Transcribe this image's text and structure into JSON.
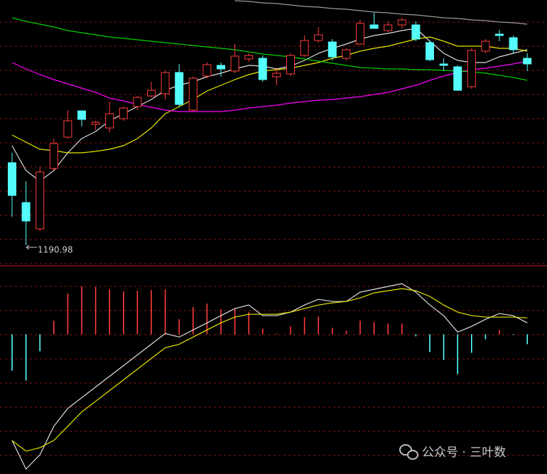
{
  "chart_data": [
    {
      "type": "candlestick",
      "up_color": "#ff3c3c",
      "down_color": "#54fcfc",
      "ylim": [
        1164,
        1536
      ],
      "open": [
        1307,
        1251,
        1214,
        1299,
        1343,
        1380,
        1361,
        1356,
        1369,
        1386,
        1401,
        1404,
        1434,
        1381,
        1429,
        1444,
        1436,
        1453,
        1454,
        1428,
        1432,
        1458,
        1479,
        1477,
        1454,
        1474,
        1501,
        1493,
        1501,
        1501,
        1476,
        1446,
        1442,
        1414,
        1464,
        1488,
        1483,
        1454
      ],
      "high": [
        1321,
        1281,
        1301,
        1341,
        1381,
        1380,
        1366,
        1393,
        1386,
        1401,
        1421,
        1436,
        1446,
        1428,
        1448,
        1448,
        1474,
        1461,
        1458,
        1441,
        1461,
        1486,
        1498,
        1481,
        1468,
        1508,
        1518,
        1506,
        1511,
        1506,
        1479,
        1454,
        1444,
        1468,
        1481,
        1494,
        1486,
        1461
      ],
      "low": [
        1231,
        1190.98,
        1211,
        1296,
        1341,
        1358,
        1353,
        1350,
        1366,
        1381,
        1399,
        1396,
        1386,
        1379,
        1426,
        1428,
        1433,
        1449,
        1421,
        1416,
        1429,
        1456,
        1476,
        1451,
        1451,
        1473,
        1496,
        1491,
        1496,
        1478,
        1450,
        1436,
        1408,
        1411,
        1461,
        1478,
        1461,
        1436
      ],
      "close": [
        1261,
        1225,
        1294,
        1334,
        1366,
        1368,
        1364,
        1376,
        1384,
        1399,
        1409,
        1434,
        1389,
        1426,
        1445,
        1439,
        1457,
        1458,
        1424,
        1433,
        1458,
        1479,
        1487,
        1456,
        1466,
        1503,
        1496,
        1501,
        1508,
        1481,
        1452,
        1444,
        1409,
        1465,
        1478,
        1486,
        1466,
        1446
      ],
      "series": [
        {
          "color": "#dddddd",
          "values": [
            1331,
            1296,
            1281,
            1296,
            1321,
            1341,
            1351,
            1366,
            1376,
            1386,
            1396,
            1409,
            1416,
            1421,
            1428,
            1433,
            1439,
            1444,
            1443,
            1439,
            1443,
            1451,
            1461,
            1468,
            1474,
            1481,
            1486,
            1489,
            1493,
            1496,
            1478,
            1461,
            1451,
            1448,
            1448,
            1456,
            1461,
            1466
          ]
        },
        {
          "color": "#e6e600",
          "values": [
            1346,
            1336,
            1326,
            1324,
            1321,
            1321,
            1323,
            1326,
            1331,
            1341,
            1356,
            1376,
            1386,
            1396,
            1408,
            1416,
            1424,
            1431,
            1436,
            1438,
            1440,
            1444,
            1448,
            1454,
            1458,
            1464,
            1468,
            1471,
            1476,
            1481,
            1484,
            1478,
            1471,
            1471,
            1471,
            1468,
            1468,
            1464
          ]
        },
        {
          "color": "#ff00ff",
          "values": [
            1448,
            1439,
            1431,
            1424,
            1418,
            1412,
            1406,
            1398,
            1394,
            1389,
            1385,
            1381,
            1379,
            1379,
            1379,
            1379,
            1381,
            1384,
            1386,
            1388,
            1391,
            1393,
            1395,
            1396,
            1398,
            1400,
            1403,
            1406,
            1411,
            1416,
            1423,
            1429,
            1434,
            1438,
            1440,
            1443,
            1446,
            1450
          ]
        },
        {
          "color": "#00d000",
          "values": [
            1511,
            1506,
            1502,
            1498,
            1493,
            1490,
            1487,
            1484,
            1482,
            1480,
            1478,
            1476,
            1474,
            1472,
            1470,
            1468,
            1466,
            1463,
            1460,
            1458,
            1456,
            1453,
            1450,
            1447,
            1444,
            1441,
            1440,
            1439,
            1439,
            1438,
            1438,
            1437,
            1436,
            1435,
            1433,
            1430,
            1427,
            1423
          ]
        },
        {
          "color": "#9a9a9a",
          "values": [
            null,
            null,
            null,
            null,
            null,
            null,
            null,
            null,
            null,
            null,
            null,
            null,
            null,
            null,
            null,
            null,
            1535,
            1534,
            1532,
            1531,
            1529,
            1527,
            1526,
            1524,
            1523,
            1521,
            1519,
            1518,
            1516,
            1515,
            1513,
            1511,
            1510,
            1508,
            1507,
            1505,
            1504,
            1502
          ]
        }
      ]
    },
    {
      "type": "macd",
      "up_color": "#ff3c3c",
      "down_color": "#54fcfc",
      "ylim": [
        -19.6,
        9.6
      ],
      "histogram": [
        -5.1,
        -6.5,
        -2.4,
        1.9,
        5.7,
        6.7,
        6.6,
        6.3,
        6.0,
        6.1,
        6.2,
        6.3,
        2.1,
        3.8,
        4.3,
        3.5,
        3.6,
        3.1,
        0.8,
        0.1,
        1.1,
        2.4,
        2.5,
        0.9,
        0.5,
        1.9,
        1.7,
        1.5,
        1.5,
        -0.3,
        -2.5,
        -3.6,
        -5.6,
        -2.6,
        -0.7,
        0.6,
        -0.1,
        -1.4
      ],
      "series": [
        {
          "color": "#dddddd",
          "values": [
            -14.9,
            -18.9,
            -16.9,
            -12.9,
            -10.4,
            -8.9,
            -7.4,
            -5.9,
            -4.4,
            -2.9,
            -1.4,
            0.1,
            -0.4,
            0.6,
            1.6,
            2.6,
            3.6,
            4.1,
            2.6,
            2.6,
            3.1,
            4.1,
            4.9,
            4.6,
            4.6,
            5.9,
            6.3,
            6.7,
            7.1,
            5.9,
            4.1,
            2.6,
            0.3,
            1.1,
            2.1,
            2.9,
            2.6,
            1.6
          ]
        },
        {
          "color": "#e6e600",
          "values": [
            -14.9,
            -16.4,
            -15.9,
            -14.9,
            -12.9,
            -10.9,
            -9.4,
            -7.9,
            -6.4,
            -4.9,
            -3.4,
            -1.9,
            -1.4,
            -0.4,
            0.6,
            1.6,
            2.4,
            2.8,
            2.8,
            2.8,
            3.1,
            3.6,
            4.1,
            4.4,
            4.6,
            5.1,
            5.8,
            6.1,
            6.4,
            6.1,
            5.3,
            4.1,
            3.1,
            2.6,
            2.4,
            2.4,
            2.4,
            2.3
          ]
        }
      ]
    }
  ],
  "watermark": "公众号 · 三叶数"
}
